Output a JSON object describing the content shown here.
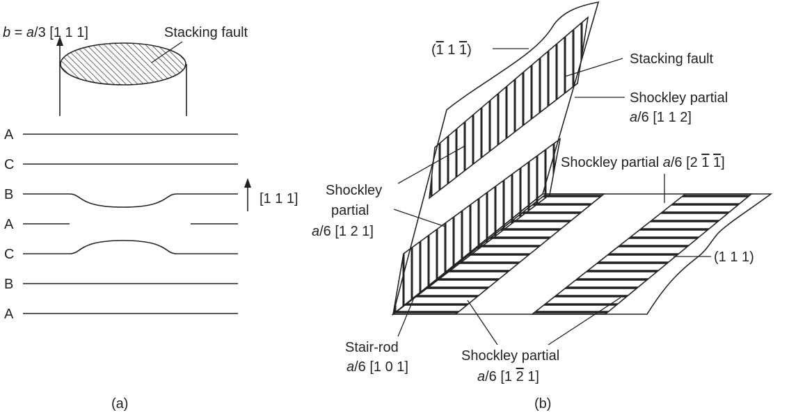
{
  "panel_a": {
    "burgers_vector": {
      "symbol": "b",
      "equals": " = ",
      "a": "a",
      "fraction": "/3 [1  1  1]"
    },
    "stacking_fault_label": "Stacking fault",
    "layers": [
      "A",
      "C",
      "B",
      "A",
      "C",
      "B",
      "A"
    ],
    "direction_label": "[1  1  1]",
    "caption": "(a)"
  },
  "panel_b": {
    "plane_upper": {
      "open": "(",
      "bar_digit": "1",
      "rest1": "  1  ",
      "bar_digit2": "1",
      "close": ")"
    },
    "stacking_fault_label": "Stacking fault",
    "shockley_112": {
      "line1": "Shockley partial",
      "a": "a",
      "line2": "/6 [1  1  2]"
    },
    "shockley_211": {
      "prefix": "Shockley partial ",
      "a": "a",
      "mid": "/6 [2  ",
      "bar1": "1",
      "sp": "  ",
      "bar2": "1",
      "close": "]"
    },
    "shockley_121": {
      "line1": "Shockley",
      "line2": "partial",
      "a": "a",
      "line3": "/6 [1  2  1]"
    },
    "plane_lower": "(1 1 1)",
    "stair_rod": {
      "line1": "Stair-rod",
      "a": "a",
      "line2": "/6 [1  0  1]"
    },
    "shockley_1m21": {
      "line1": "Shockley partial",
      "a": "a",
      "pre": "/6 [1  ",
      "bar": "2",
      "post": "  1]"
    },
    "caption": "(b)"
  }
}
